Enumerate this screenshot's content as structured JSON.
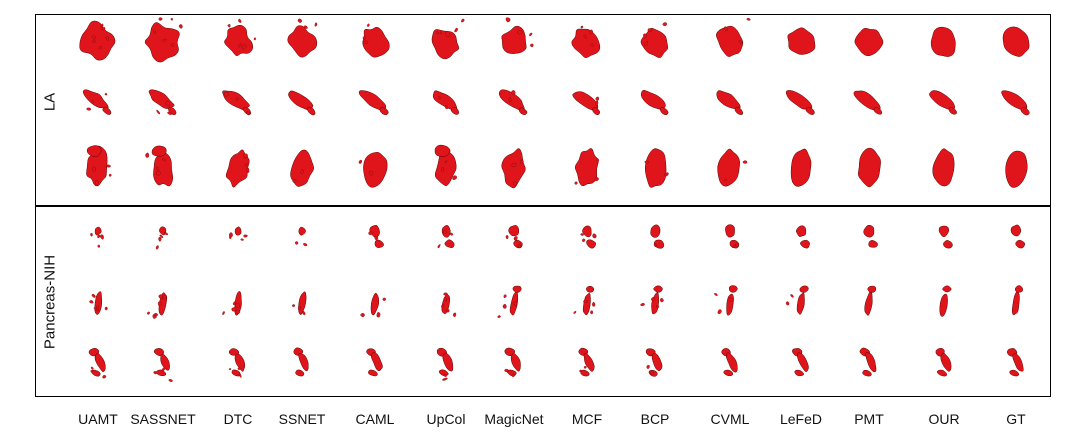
{
  "rows": [
    {
      "label": "LA",
      "samples": 3
    },
    {
      "label": "Pancreas-NIH",
      "samples": 3
    }
  ],
  "methods": [
    "UAMT",
    "SASSNET",
    "DTC",
    "SSNET",
    "CAML",
    "UpCol",
    "MagicNet",
    "MCF",
    "BCP",
    "CVML",
    "LeFeD",
    "PMT",
    "OUR",
    "GT"
  ],
  "colors": {
    "segmentation": "#e0151b",
    "outline": "#5a0000",
    "frame": "#000000"
  }
}
